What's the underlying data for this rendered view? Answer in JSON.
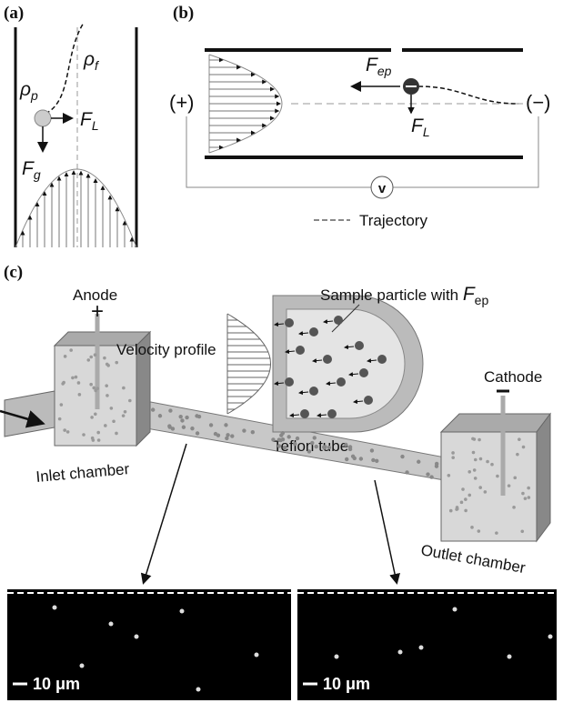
{
  "panel_a": {
    "label": "(a)",
    "rho_f": {
      "symbol": "ρ",
      "subscript": "f"
    },
    "rho_p": {
      "symbol": "ρ",
      "subscript": "p"
    },
    "force_lift": {
      "symbol": "F",
      "subscript": "L"
    },
    "force_gravity": {
      "symbol": "F",
      "subscript": "g"
    }
  },
  "panel_b": {
    "label": "(b)",
    "force_ep": {
      "symbol": "F",
      "subscript": "ep"
    },
    "force_lift": {
      "symbol": "F",
      "subscript": "L"
    },
    "positive": "(+)",
    "negative": "(−)",
    "voltage": "v",
    "legend": "Trajectory"
  },
  "panel_c": {
    "label": "(c)",
    "anode": "Anode",
    "anode_sign": "+",
    "cathode": "Cathode",
    "sample_particle": {
      "text": "Sample particle with ",
      "symbol": "F",
      "subscript": "ep"
    },
    "velocity_profile": "Velocity profile",
    "tube": "Teflon tube",
    "inlet": "Inlet chamber",
    "outlet": "Outlet chamber"
  },
  "micrographs": [
    {
      "scale_bar": "10 μm"
    },
    {
      "scale_bar": "10 μm"
    }
  ]
}
